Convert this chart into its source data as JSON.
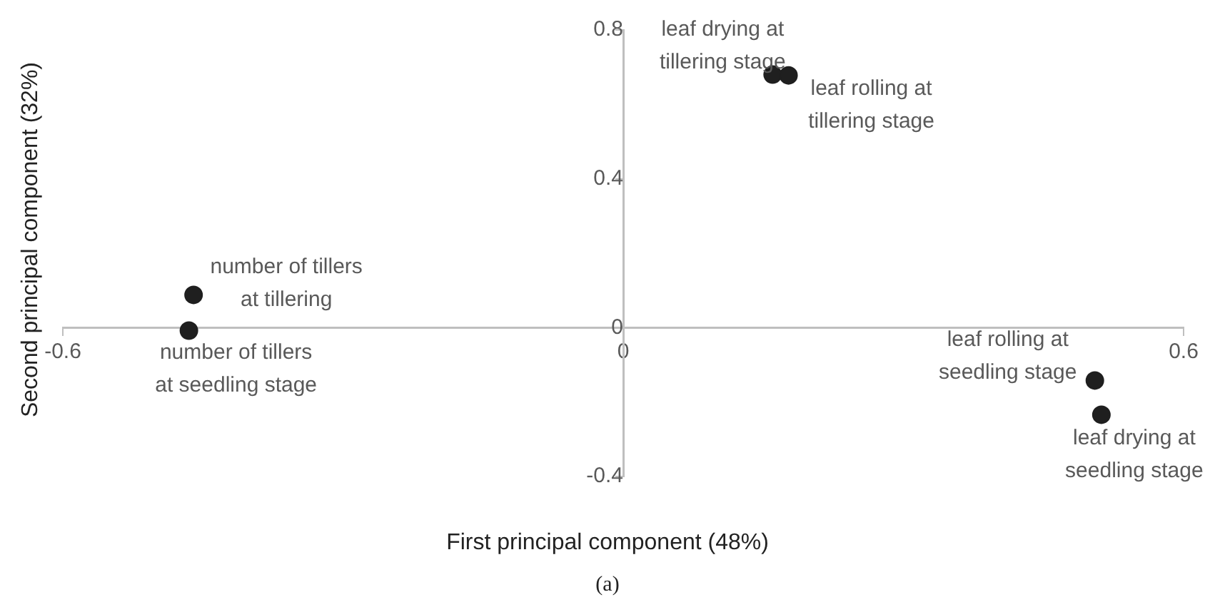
{
  "chart_data": {
    "type": "scatter",
    "xlabel": "First principal component (48%)",
    "ylabel": "Second principal component (32%)",
    "series": [
      {
        "color": "#1f1f1f",
        "x": [
          -0.46,
          -0.465,
          0.16,
          0.177,
          0.505,
          0.512
        ],
        "values": [
          0.088,
          -0.008,
          0.68,
          0.678,
          -0.142,
          -0.234
        ]
      }
    ],
    "xlim": [
      -0.6,
      0.6
    ],
    "xticks": [
      -0.6,
      0,
      0.6
    ],
    "ylim": [
      -0.4,
      0.8
    ],
    "yticks": [
      -0.4,
      0,
      0.4,
      0.8
    ],
    "grid": false,
    "legend": false,
    "marker": "circle",
    "annotations": [
      {
        "text": "number of tillers at tillering",
        "x": -0.46,
        "y": 0.088
      },
      {
        "text": "number of tillers at seedling stage",
        "x": -0.465,
        "y": -0.008
      },
      {
        "text": "leaf drying at tillering stage",
        "x": 0.16,
        "y": 0.68
      },
      {
        "text": "leaf rolling at tillering stage",
        "x": 0.177,
        "y": 0.678
      },
      {
        "text": "leaf rolling at seedling stage",
        "x": 0.505,
        "y": -0.142
      },
      {
        "text": "leaf drying at seedling stage",
        "x": 0.512,
        "y": -0.234
      },
      "(a)"
    ]
  }
}
